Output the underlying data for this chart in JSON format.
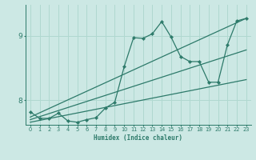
{
  "title": "",
  "xlabel": "Humidex (Indice chaleur)",
  "bg_color": "#cce8e4",
  "line_color": "#2d7a6a",
  "grid_color": "#b0d8d0",
  "xlim": [
    -0.5,
    23.5
  ],
  "ylim": [
    7.62,
    9.48
  ],
  "yticks": [
    8,
    9
  ],
  "xticks": [
    0,
    1,
    2,
    3,
    4,
    5,
    6,
    7,
    8,
    9,
    10,
    11,
    12,
    13,
    14,
    15,
    16,
    17,
    18,
    19,
    20,
    21,
    22,
    23
  ],
  "data_x": [
    0,
    1,
    2,
    3,
    4,
    5,
    6,
    7,
    8,
    9,
    10,
    11,
    12,
    13,
    14,
    15,
    16,
    17,
    18,
    19,
    20,
    21,
    22,
    23
  ],
  "data_y": [
    7.82,
    7.72,
    7.72,
    7.8,
    7.68,
    7.66,
    7.7,
    7.73,
    7.88,
    7.97,
    8.52,
    8.97,
    8.96,
    9.03,
    9.22,
    8.98,
    8.68,
    8.6,
    8.6,
    8.28,
    8.28,
    8.86,
    9.23,
    9.27
  ],
  "trend1_x": [
    0,
    23
  ],
  "trend1_y": [
    7.74,
    9.27
  ],
  "trend2_x": [
    0,
    23
  ],
  "trend2_y": [
    7.7,
    8.78
  ],
  "trend3_x": [
    0,
    23
  ],
  "trend3_y": [
    7.66,
    8.32
  ]
}
